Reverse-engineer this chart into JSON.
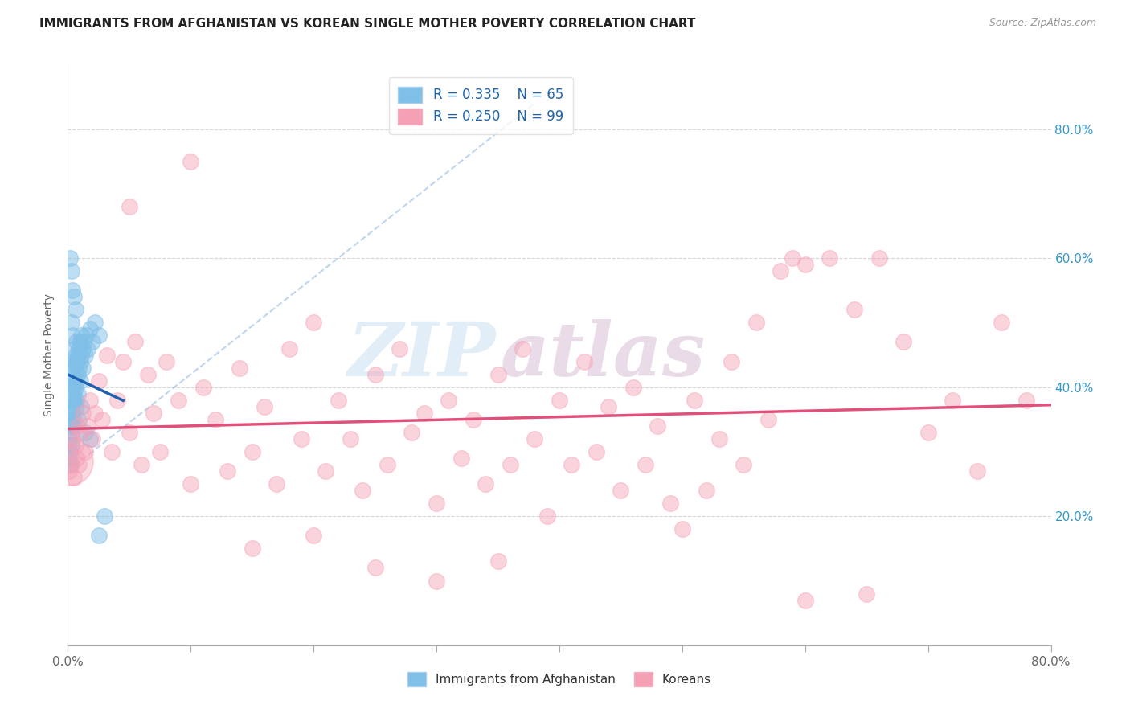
{
  "title": "IMMIGRANTS FROM AFGHANISTAN VS KOREAN SINGLE MOTHER POVERTY CORRELATION CHART",
  "source": "Source: ZipAtlas.com",
  "ylabel": "Single Mother Poverty",
  "xlim": [
    0.0,
    0.8
  ],
  "ylim": [
    0.0,
    0.9
  ],
  "legend_blue_r": "R = 0.335",
  "legend_blue_n": "N = 65",
  "legend_pink_r": "R = 0.250",
  "legend_pink_n": "N = 99",
  "label_blue": "Immigrants from Afghanistan",
  "label_pink": "Koreans",
  "blue_color": "#7fbfe8",
  "pink_color": "#f5a0b5",
  "trend_blue_color": "#2060b0",
  "trend_pink_color": "#e0507a",
  "dashed_color": "#a8c8e8",
  "watermark_zip": "ZIP",
  "watermark_atlas": "atlas",
  "ytick_vals": [
    0.2,
    0.4,
    0.6,
    0.8
  ],
  "blue_scatter_x": [
    0.001,
    0.001,
    0.002,
    0.002,
    0.002,
    0.002,
    0.003,
    0.003,
    0.003,
    0.003,
    0.003,
    0.003,
    0.004,
    0.004,
    0.004,
    0.004,
    0.004,
    0.005,
    0.005,
    0.005,
    0.005,
    0.005,
    0.006,
    0.006,
    0.006,
    0.006,
    0.007,
    0.007,
    0.007,
    0.007,
    0.008,
    0.008,
    0.008,
    0.009,
    0.009,
    0.01,
    0.01,
    0.01,
    0.011,
    0.011,
    0.012,
    0.012,
    0.013,
    0.014,
    0.015,
    0.016,
    0.018,
    0.02,
    0.022,
    0.025,
    0.002,
    0.003,
    0.004,
    0.005,
    0.006,
    0.003,
    0.004,
    0.005,
    0.007,
    0.009,
    0.011,
    0.014,
    0.018,
    0.025,
    0.03
  ],
  "blue_scatter_y": [
    0.29,
    0.32,
    0.3,
    0.34,
    0.36,
    0.28,
    0.33,
    0.36,
    0.38,
    0.31,
    0.4,
    0.35,
    0.37,
    0.4,
    0.43,
    0.34,
    0.42,
    0.38,
    0.41,
    0.44,
    0.35,
    0.39,
    0.4,
    0.43,
    0.45,
    0.37,
    0.41,
    0.44,
    0.47,
    0.38,
    0.42,
    0.45,
    0.39,
    0.43,
    0.46,
    0.44,
    0.47,
    0.41,
    0.45,
    0.48,
    0.46,
    0.43,
    0.47,
    0.45,
    0.48,
    0.46,
    0.49,
    0.47,
    0.5,
    0.48,
    0.6,
    0.58,
    0.55,
    0.54,
    0.52,
    0.5,
    0.48,
    0.46,
    0.44,
    0.35,
    0.37,
    0.33,
    0.32,
    0.17,
    0.2
  ],
  "pink_scatter_x": [
    0.001,
    0.002,
    0.003,
    0.004,
    0.005,
    0.006,
    0.007,
    0.008,
    0.009,
    0.01,
    0.012,
    0.014,
    0.016,
    0.018,
    0.02,
    0.022,
    0.025,
    0.028,
    0.032,
    0.036,
    0.04,
    0.045,
    0.05,
    0.055,
    0.06,
    0.065,
    0.07,
    0.075,
    0.08,
    0.09,
    0.1,
    0.11,
    0.12,
    0.13,
    0.14,
    0.15,
    0.16,
    0.17,
    0.18,
    0.19,
    0.2,
    0.21,
    0.22,
    0.23,
    0.24,
    0.25,
    0.26,
    0.27,
    0.28,
    0.29,
    0.3,
    0.31,
    0.32,
    0.33,
    0.34,
    0.35,
    0.36,
    0.37,
    0.38,
    0.39,
    0.4,
    0.41,
    0.42,
    0.43,
    0.44,
    0.45,
    0.46,
    0.47,
    0.48,
    0.49,
    0.5,
    0.51,
    0.52,
    0.53,
    0.54,
    0.55,
    0.56,
    0.57,
    0.58,
    0.59,
    0.6,
    0.62,
    0.64,
    0.66,
    0.68,
    0.7,
    0.72,
    0.74,
    0.76,
    0.78,
    0.05,
    0.1,
    0.15,
    0.2,
    0.25,
    0.3,
    0.35,
    0.6,
    0.65
  ],
  "pink_scatter_y": [
    0.27,
    0.3,
    0.28,
    0.32,
    0.26,
    0.31,
    0.29,
    0.34,
    0.28,
    0.33,
    0.36,
    0.3,
    0.34,
    0.38,
    0.32,
    0.36,
    0.41,
    0.35,
    0.45,
    0.3,
    0.38,
    0.44,
    0.33,
    0.47,
    0.28,
    0.42,
    0.36,
    0.3,
    0.44,
    0.38,
    0.25,
    0.4,
    0.35,
    0.27,
    0.43,
    0.3,
    0.37,
    0.25,
    0.46,
    0.32,
    0.5,
    0.27,
    0.38,
    0.32,
    0.24,
    0.42,
    0.28,
    0.46,
    0.33,
    0.36,
    0.22,
    0.38,
    0.29,
    0.35,
    0.25,
    0.42,
    0.28,
    0.46,
    0.32,
    0.2,
    0.38,
    0.28,
    0.44,
    0.3,
    0.37,
    0.24,
    0.4,
    0.28,
    0.34,
    0.22,
    0.18,
    0.38,
    0.24,
    0.32,
    0.44,
    0.28,
    0.5,
    0.35,
    0.58,
    0.6,
    0.59,
    0.6,
    0.52,
    0.6,
    0.47,
    0.33,
    0.38,
    0.27,
    0.5,
    0.38,
    0.68,
    0.75,
    0.15,
    0.17,
    0.12,
    0.1,
    0.13,
    0.07,
    0.08
  ],
  "pink_large_x": [
    0.001
  ],
  "pink_large_y": [
    0.285
  ]
}
